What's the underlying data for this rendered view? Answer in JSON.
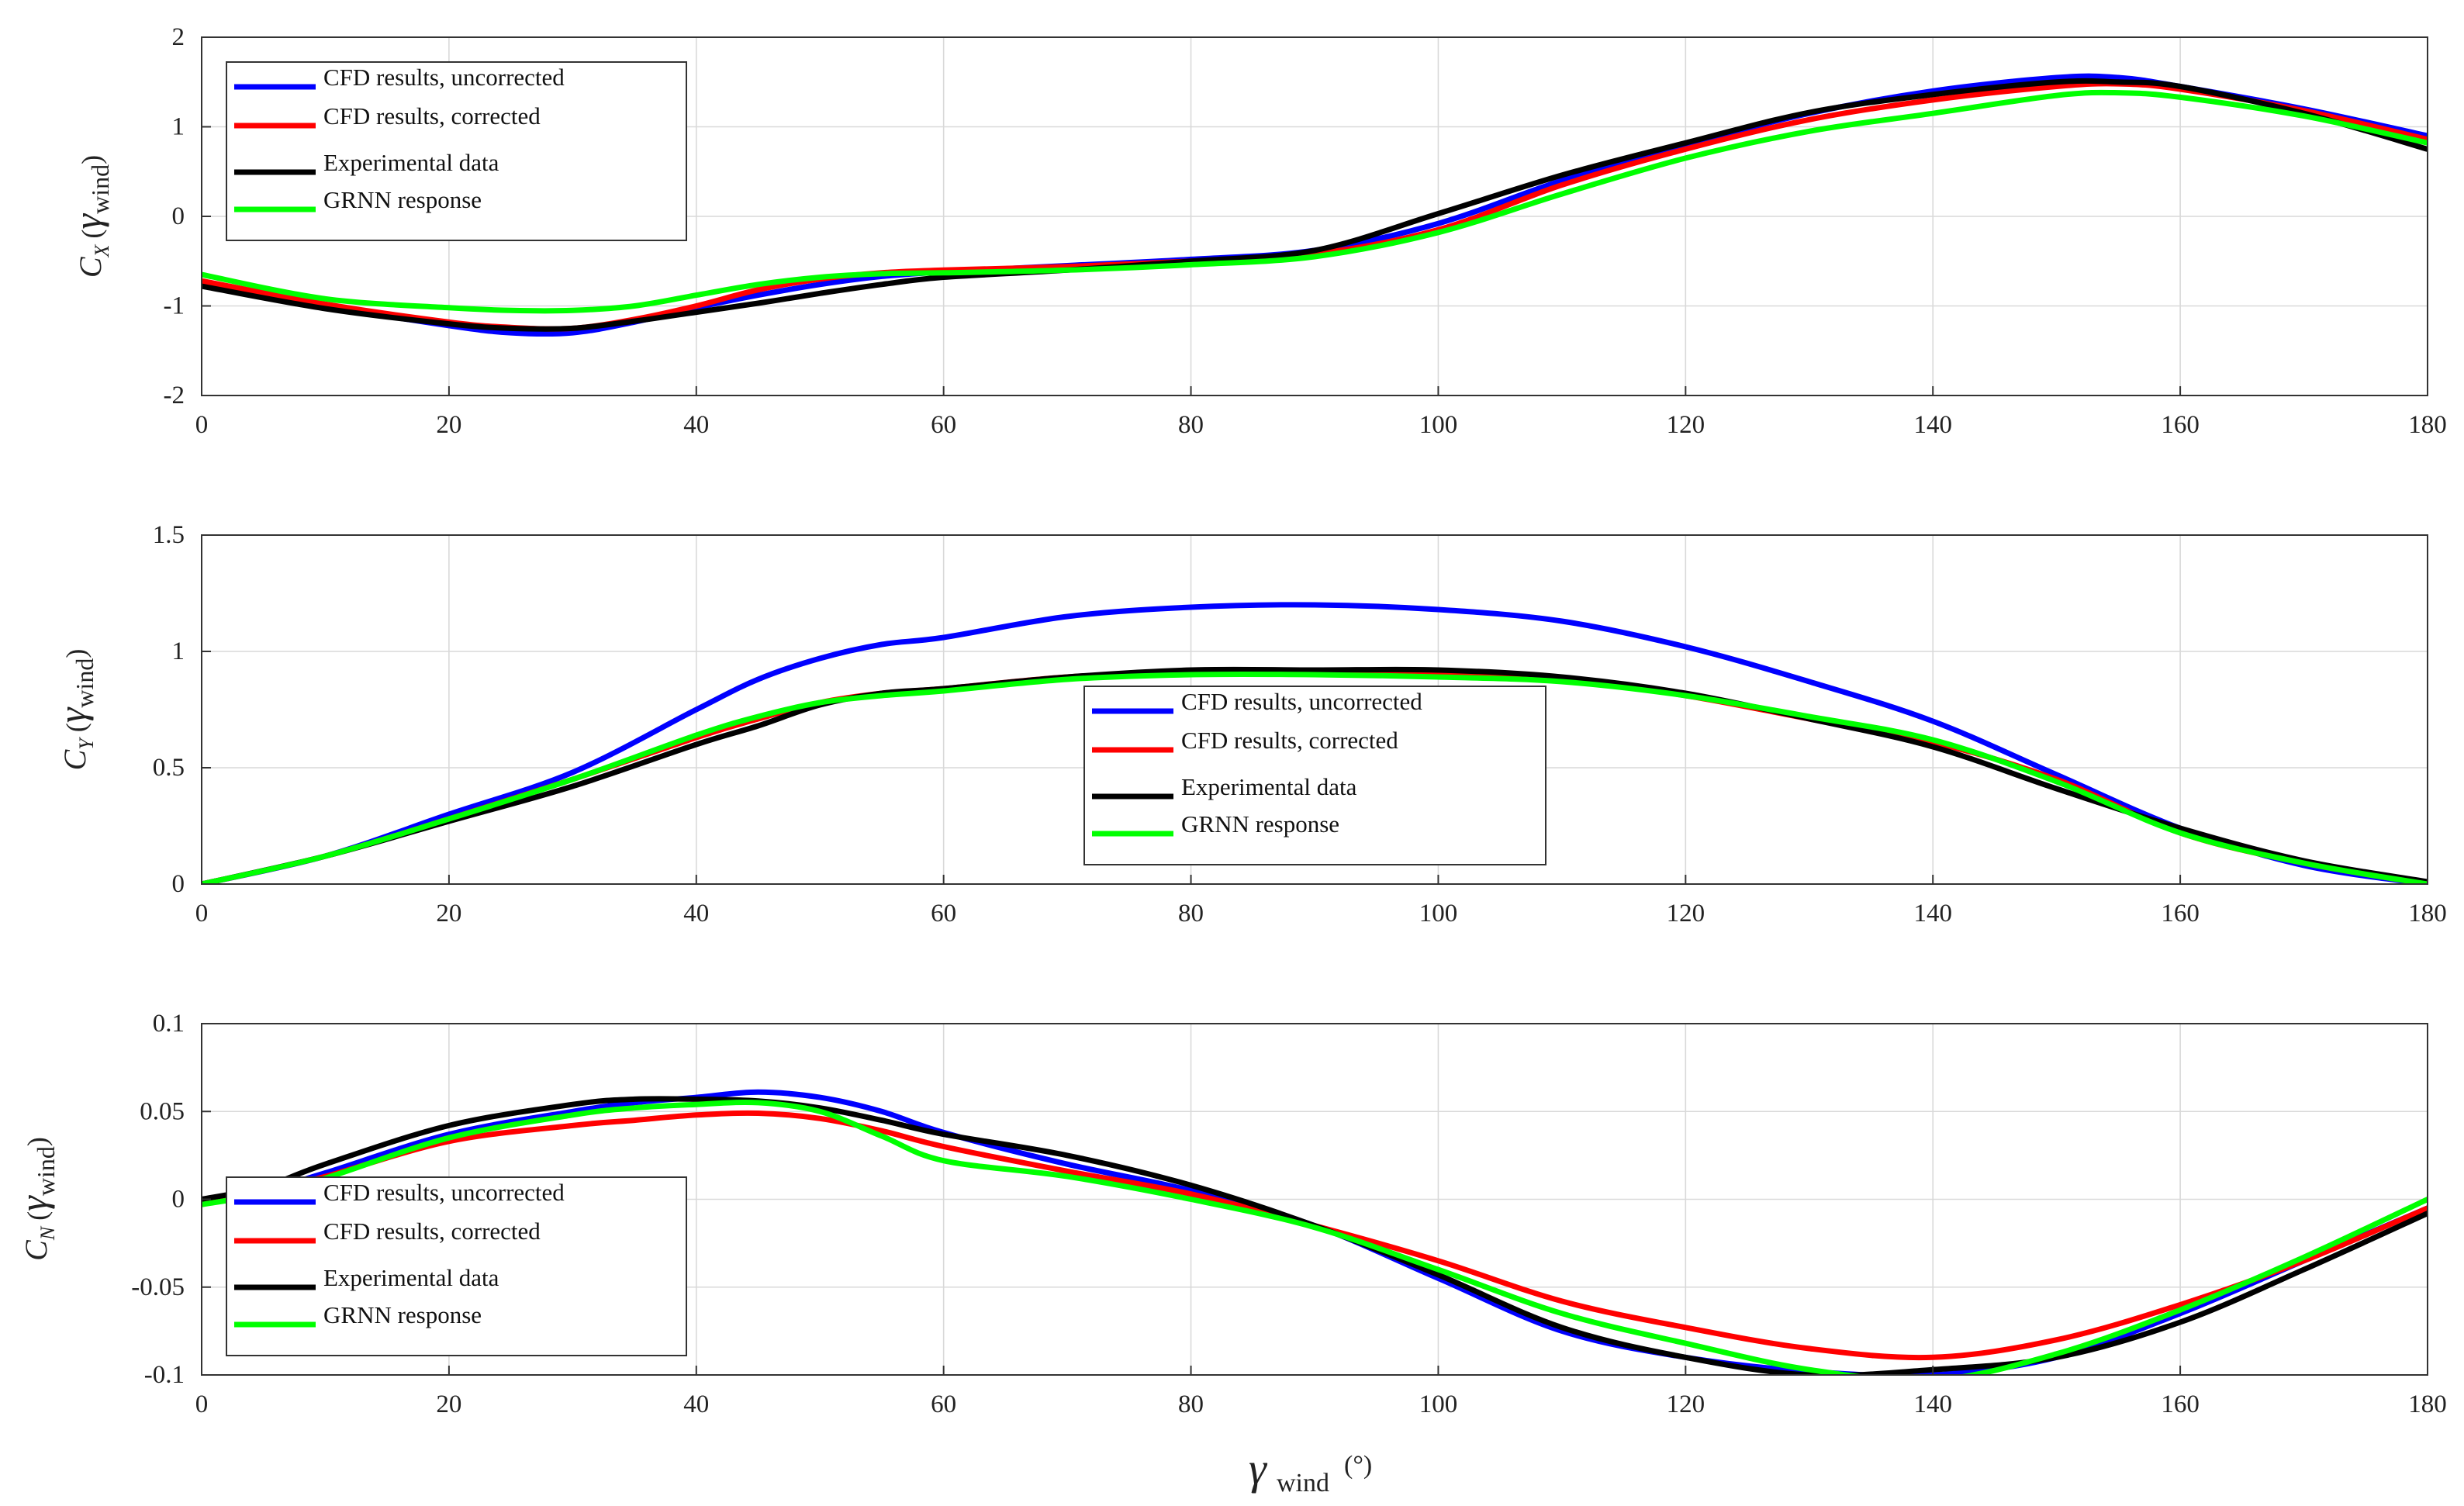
{
  "figure": {
    "xlabel_symbol": "γ",
    "xlabel_sub": "wind",
    "xlabel_unit": "(°)"
  },
  "colors": {
    "CFD results, uncorrected": "#0000ff",
    "CFD results, corrected": "#ff0000",
    "Experimental data": "#000000",
    "GRNN response": "#00ff00"
  },
  "chart_data": [
    {
      "type": "line",
      "id": "cx",
      "ylabel_main": "C",
      "ylabel_sub": "X",
      "ylabel_arg": "γ",
      "ylabel_arg_sub": "wind",
      "legend": "top-left",
      "xlim": [
        0,
        180
      ],
      "ylim": [
        -2,
        2
      ],
      "xticks": [
        0,
        20,
        40,
        60,
        80,
        100,
        120,
        140,
        160,
        180
      ],
      "yticks": [
        -2,
        -1,
        0,
        1,
        2
      ],
      "xtick_labels": [
        "0",
        "20",
        "40",
        "60",
        "80",
        "100",
        "120",
        "140",
        "160",
        "180"
      ],
      "ytick_labels": [
        "-2",
        "-1",
        "0",
        "1",
        "2"
      ],
      "x": [
        0,
        10,
        20,
        25,
        30,
        35,
        40,
        45,
        50,
        55,
        60,
        70,
        80,
        90,
        100,
        110,
        120,
        130,
        140,
        150,
        155,
        160,
        170,
        180
      ],
      "series": [
        {
          "name": "CFD results, uncorrected",
          "values": [
            -0.75,
            -1.0,
            -1.22,
            -1.3,
            -1.3,
            -1.18,
            -1.02,
            -0.88,
            -0.76,
            -0.67,
            -0.62,
            -0.55,
            -0.48,
            -0.38,
            -0.08,
            0.4,
            0.8,
            1.15,
            1.4,
            1.55,
            1.55,
            1.45,
            1.2,
            0.9
          ]
        },
        {
          "name": "CFD results, corrected",
          "values": [
            -0.72,
            -0.98,
            -1.18,
            -1.24,
            -1.25,
            -1.15,
            -1.0,
            -0.82,
            -0.7,
            -0.63,
            -0.6,
            -0.56,
            -0.5,
            -0.42,
            -0.15,
            0.35,
            0.75,
            1.08,
            1.3,
            1.45,
            1.48,
            1.42,
            1.18,
            0.86
          ]
        },
        {
          "name": "Experimental data",
          "values": [
            -0.78,
            -1.03,
            -1.2,
            -1.25,
            -1.25,
            -1.17,
            -1.07,
            -0.97,
            -0.86,
            -0.76,
            -0.68,
            -0.6,
            -0.5,
            -0.38,
            0.03,
            0.46,
            0.82,
            1.16,
            1.36,
            1.5,
            1.5,
            1.45,
            1.15,
            0.75
          ]
        },
        {
          "name": "GRNN response",
          "values": [
            -0.65,
            -0.92,
            -1.02,
            -1.05,
            -1.05,
            -1.0,
            -0.88,
            -0.76,
            -0.68,
            -0.64,
            -0.63,
            -0.6,
            -0.54,
            -0.45,
            -0.18,
            0.25,
            0.65,
            0.95,
            1.15,
            1.35,
            1.38,
            1.33,
            1.12,
            0.82
          ]
        }
      ]
    },
    {
      "type": "line",
      "id": "cy",
      "ylabel_main": "C",
      "ylabel_sub": "Y",
      "ylabel_arg": "γ",
      "ylabel_arg_sub": "wind",
      "legend": "center",
      "xlim": [
        0,
        180
      ],
      "ylim": [
        0,
        1.5
      ],
      "xticks": [
        0,
        20,
        40,
        60,
        80,
        100,
        120,
        140,
        160,
        180
      ],
      "yticks": [
        0,
        0.5,
        1,
        1.5
      ],
      "xtick_labels": [
        "0",
        "20",
        "40",
        "60",
        "80",
        "100",
        "120",
        "140",
        "160",
        "180"
      ],
      "ytick_labels": [
        "0",
        "0.5",
        "1",
        "1.5"
      ],
      "x": [
        0,
        10,
        20,
        30,
        40,
        45,
        50,
        55,
        60,
        70,
        80,
        90,
        100,
        110,
        120,
        130,
        140,
        150,
        160,
        170,
        180
      ],
      "series": [
        {
          "name": "CFD results, uncorrected",
          "values": [
            0,
            0.12,
            0.3,
            0.48,
            0.75,
            0.88,
            0.97,
            1.03,
            1.06,
            1.15,
            1.19,
            1.2,
            1.18,
            1.13,
            1.02,
            0.87,
            0.7,
            0.47,
            0.24,
            0.08,
            0
          ]
        },
        {
          "name": "CFD results, corrected",
          "values": [
            0,
            0.12,
            0.28,
            0.45,
            0.63,
            0.71,
            0.78,
            0.82,
            0.84,
            0.89,
            0.91,
            0.91,
            0.9,
            0.88,
            0.81,
            0.71,
            0.61,
            0.45,
            0.22,
            0.09,
            0
          ]
        },
        {
          "name": "Experimental data",
          "values": [
            0,
            0.12,
            0.27,
            0.42,
            0.6,
            0.68,
            0.77,
            0.82,
            0.84,
            0.89,
            0.92,
            0.92,
            0.92,
            0.89,
            0.82,
            0.71,
            0.59,
            0.41,
            0.24,
            0.1,
            0.01
          ]
        },
        {
          "name": "GRNN response",
          "values": [
            0,
            0.12,
            0.28,
            0.45,
            0.64,
            0.72,
            0.78,
            0.81,
            0.83,
            0.88,
            0.9,
            0.9,
            0.89,
            0.87,
            0.81,
            0.72,
            0.62,
            0.44,
            0.22,
            0.09,
            0
          ]
        }
      ]
    },
    {
      "type": "line",
      "id": "cn",
      "ylabel_main": "C",
      "ylabel_sub": "N",
      "ylabel_arg": "γ",
      "ylabel_arg_sub": "wind",
      "legend": "bottom-left",
      "xlim": [
        0,
        180
      ],
      "ylim": [
        -0.1,
        0.1
      ],
      "xticks": [
        0,
        20,
        40,
        60,
        80,
        100,
        120,
        140,
        160,
        180
      ],
      "yticks": [
        -0.1,
        -0.05,
        0,
        0.05,
        0.1
      ],
      "xtick_labels": [
        "0",
        "20",
        "40",
        "60",
        "80",
        "100",
        "120",
        "140",
        "160",
        "180"
      ],
      "ytick_labels": [
        "-0.1",
        "-0.05",
        "0",
        "0.05",
        "0.1"
      ],
      "x": [
        0,
        5,
        10,
        20,
        30,
        35,
        40,
        45,
        50,
        55,
        60,
        70,
        80,
        90,
        100,
        110,
        120,
        130,
        140,
        150,
        160,
        170,
        180
      ],
      "series": [
        {
          "name": "CFD results, uncorrected",
          "values": [
            0.0,
            0.005,
            0.015,
            0.037,
            0.05,
            0.055,
            0.058,
            0.061,
            0.058,
            0.05,
            0.038,
            0.02,
            0.005,
            -0.015,
            -0.045,
            -0.075,
            -0.09,
            -0.098,
            -0.1,
            -0.09,
            -0.065,
            -0.035,
            -0.005
          ]
        },
        {
          "name": "CFD results, corrected",
          "values": [
            0.0,
            0.005,
            0.013,
            0.033,
            0.042,
            0.045,
            0.048,
            0.049,
            0.046,
            0.039,
            0.03,
            0.016,
            0.003,
            -0.015,
            -0.035,
            -0.058,
            -0.073,
            -0.085,
            -0.09,
            -0.08,
            -0.06,
            -0.035,
            -0.005
          ]
        },
        {
          "name": "Experimental data",
          "values": [
            0.0,
            0.007,
            0.02,
            0.042,
            0.054,
            0.057,
            0.057,
            0.056,
            0.052,
            0.045,
            0.037,
            0.025,
            0.008,
            -0.015,
            -0.043,
            -0.073,
            -0.09,
            -0.1,
            -0.097,
            -0.09,
            -0.07,
            -0.04,
            -0.008
          ]
        },
        {
          "name": "GRNN response",
          "values": [
            -0.003,
            0.003,
            0.012,
            0.035,
            0.048,
            0.052,
            0.054,
            0.055,
            0.05,
            0.036,
            0.022,
            0.013,
            0.0,
            -0.016,
            -0.04,
            -0.065,
            -0.082,
            -0.097,
            -0.103,
            -0.088,
            -0.063,
            -0.033,
            0.0
          ]
        }
      ]
    }
  ]
}
